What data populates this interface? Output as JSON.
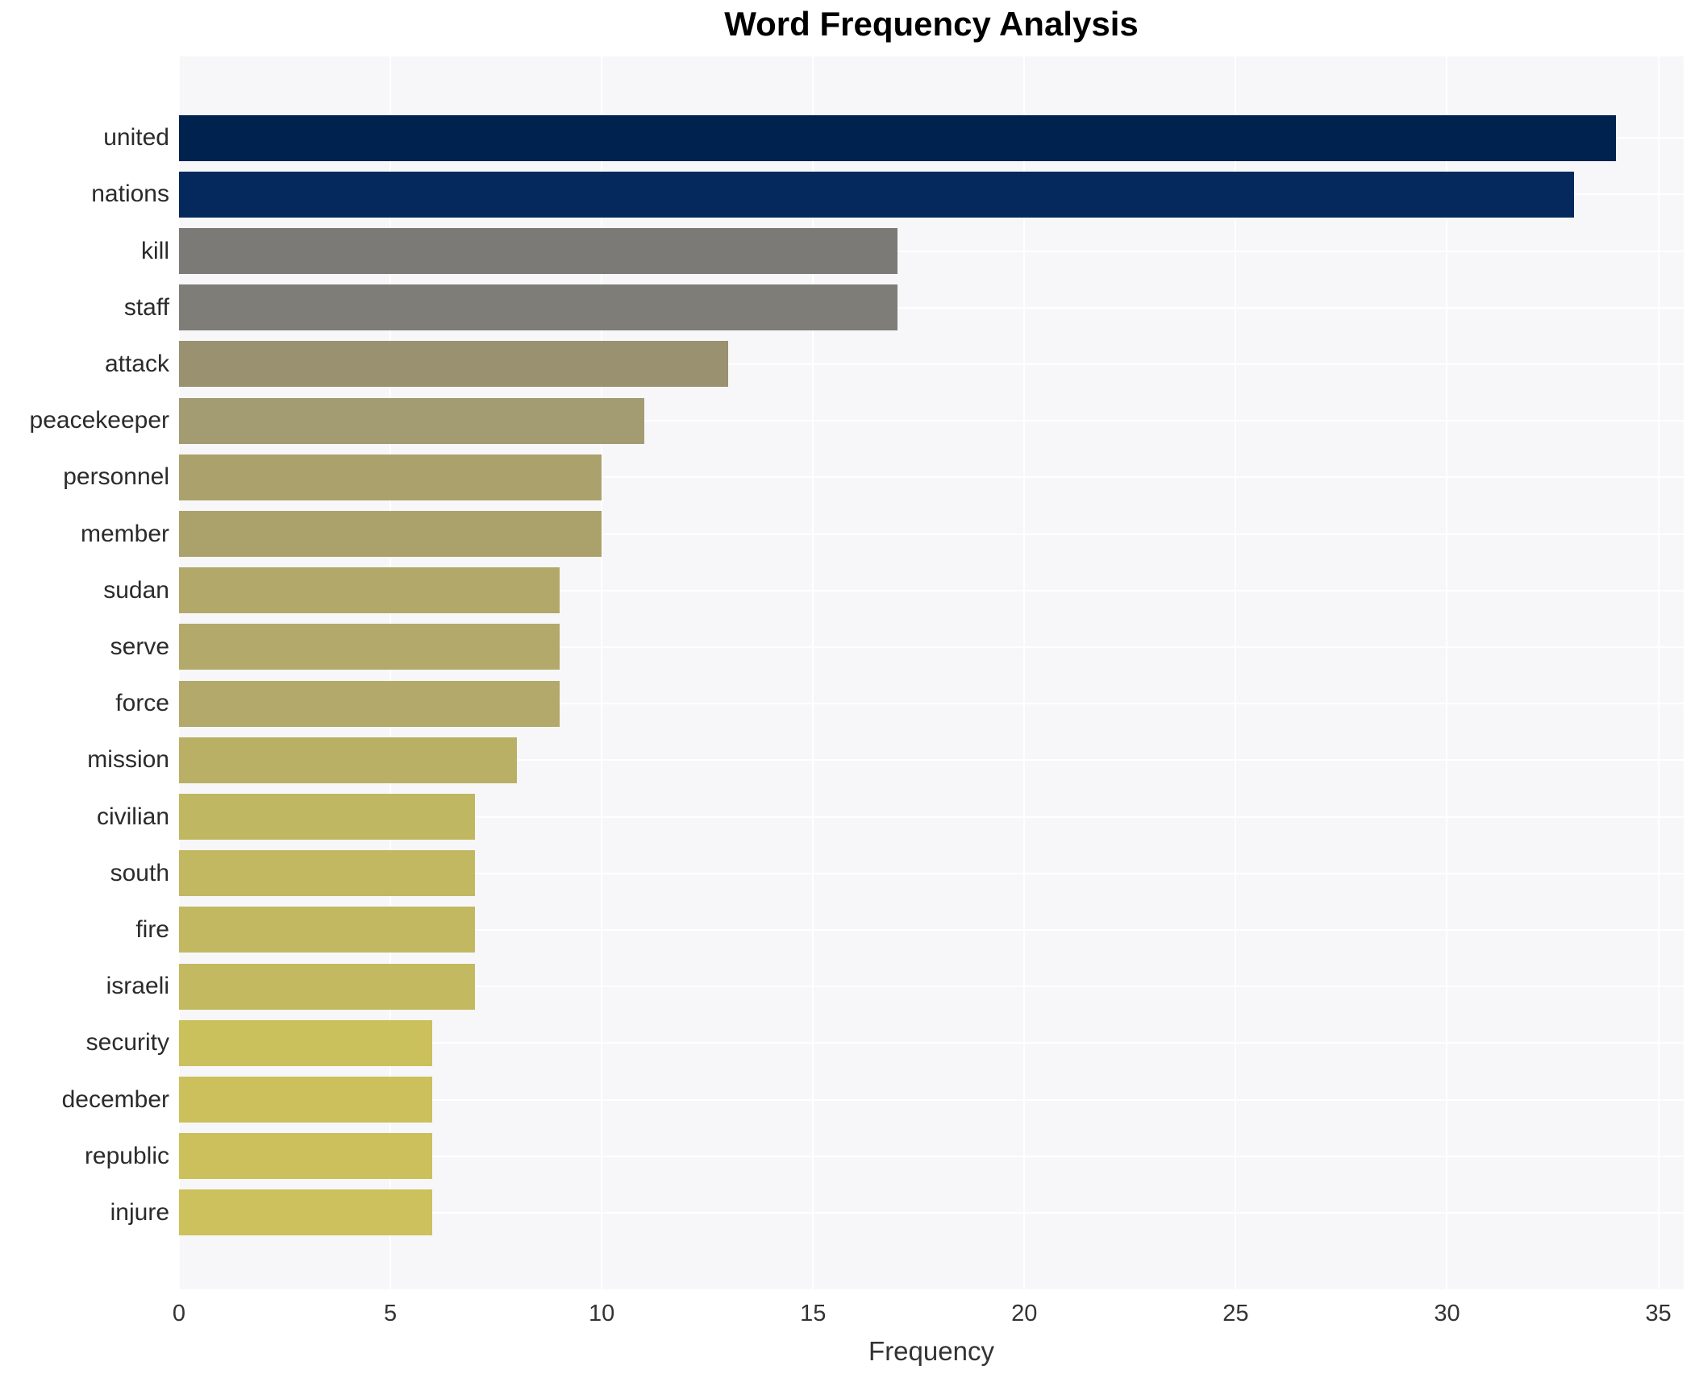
{
  "chart_data": {
    "type": "bar",
    "orientation": "horizontal",
    "title": "Word Frequency Analysis",
    "xlabel": "Frequency",
    "ylabel": "",
    "categories": [
      "united",
      "nations",
      "kill",
      "staff",
      "attack",
      "peacekeeper",
      "personnel",
      "member",
      "sudan",
      "serve",
      "force",
      "mission",
      "civilian",
      "south",
      "fire",
      "israeli",
      "security",
      "december",
      "republic",
      "injure"
    ],
    "values": [
      34,
      33,
      17,
      17,
      13,
      11,
      10,
      10,
      9,
      9,
      9,
      8,
      7,
      7,
      7,
      7,
      6,
      6,
      6,
      6
    ],
    "bar_colors": [
      "#00224e",
      "#05295c",
      "#7b7a76",
      "#7e7d78",
      "#99916f",
      "#a39b71",
      "#aaa16c",
      "#aba26b",
      "#b1a86a",
      "#b2a96a",
      "#b2a96a",
      "#b9b066",
      "#c0b762",
      "#c1b861",
      "#c1b861",
      "#c2b960",
      "#cac05c",
      "#cbc05c",
      "#cbc05c",
      "#ccc15c"
    ],
    "xticks": [
      0,
      5,
      10,
      15,
      20,
      25,
      30,
      35
    ],
    "xlim": [
      0,
      35.6
    ],
    "grid": true,
    "legend": false,
    "colors": {
      "figure_background": "#ffffff",
      "panel_background": "#f7f7f9",
      "gridline": "#ffffff",
      "title_text": "#000000",
      "tick_text": "#333333",
      "category_text": "#2b2b2b"
    }
  }
}
